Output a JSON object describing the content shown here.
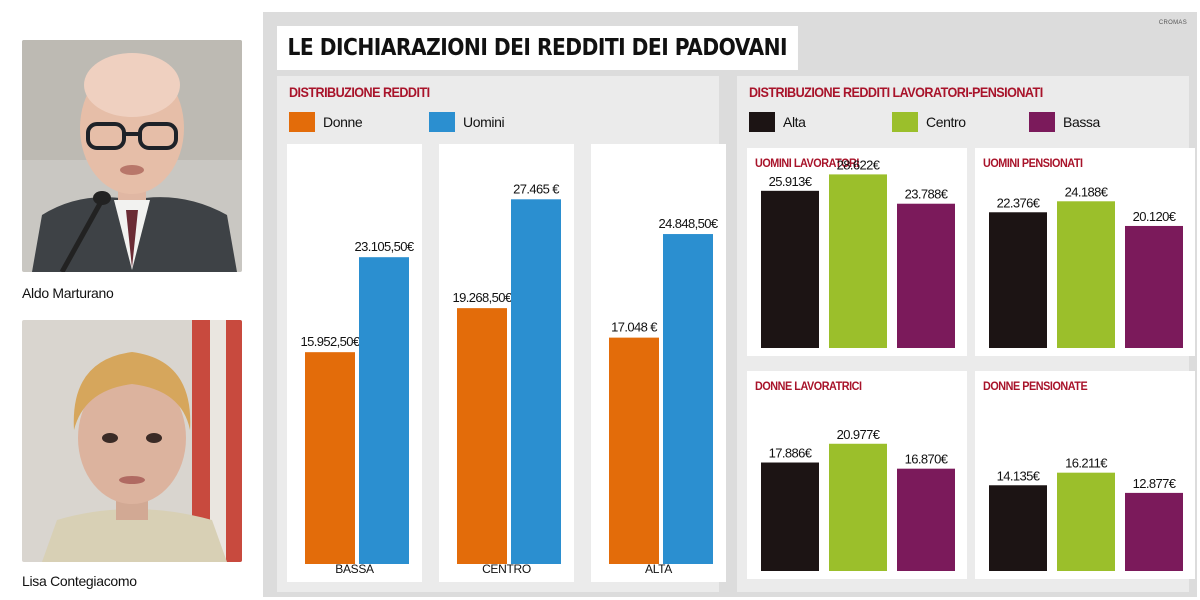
{
  "people": [
    {
      "name": "Aldo Marturano"
    },
    {
      "name": "Lisa Contegiacomo"
    }
  ],
  "credit": "CROMAS",
  "title": "LE DICHIARAZIONI DEI REDDITI DEI PADOVANI",
  "colors": {
    "donne": "#e36c0a",
    "uomini": "#2b8fd0",
    "alta": "#1c1414",
    "centro": "#9bbf2b",
    "bassa": "#7b1a5b",
    "section_title": "#a8132a"
  },
  "chart_data": [
    {
      "type": "bar",
      "title": "DISTRIBUZIONE REDDITI",
      "legend": [
        "Donne",
        "Uomini"
      ],
      "categories": [
        "BASSA",
        "CENTRO",
        "ALTA"
      ],
      "series": [
        {
          "name": "Donne",
          "values": [
            15952.5,
            19268.5,
            17048
          ],
          "labels": [
            "15.952,50€",
            "19.268,50€",
            "17.048 €"
          ]
        },
        {
          "name": "Uomini",
          "values": [
            23105.5,
            27465,
            24848.5
          ],
          "labels": [
            "23.105,50€",
            "27.465 €",
            "24.848,50€"
          ]
        }
      ],
      "ylim": [
        0,
        30500
      ]
    },
    {
      "type": "bar",
      "title": "DISTRIBUZIONE REDDITI LAVORATORI-PENSIONATI",
      "legend": [
        "Alta",
        "Centro",
        "Bassa"
      ],
      "panels": [
        {
          "title": "UOMINI LAVORATORI",
          "values": [
            25913,
            28622,
            23788
          ],
          "labels": [
            "25.913€",
            "28.622€",
            "23.788€"
          ]
        },
        {
          "title": "UOMINI PENSIONATI",
          "values": [
            22376,
            24188,
            20120
          ],
          "labels": [
            "22.376€",
            "24.188€",
            "20.120€"
          ]
        },
        {
          "title": "DONNE LAVORATRICI",
          "values": [
            17886,
            20977,
            16870
          ],
          "labels": [
            "17.886€",
            "20.977€",
            "16.870€"
          ]
        },
        {
          "title": "DONNE PENSIONATE",
          "values": [
            14135,
            16211,
            12877
          ],
          "labels": [
            "14.135€",
            "16.211€",
            "12.877€"
          ]
        }
      ]
    }
  ]
}
